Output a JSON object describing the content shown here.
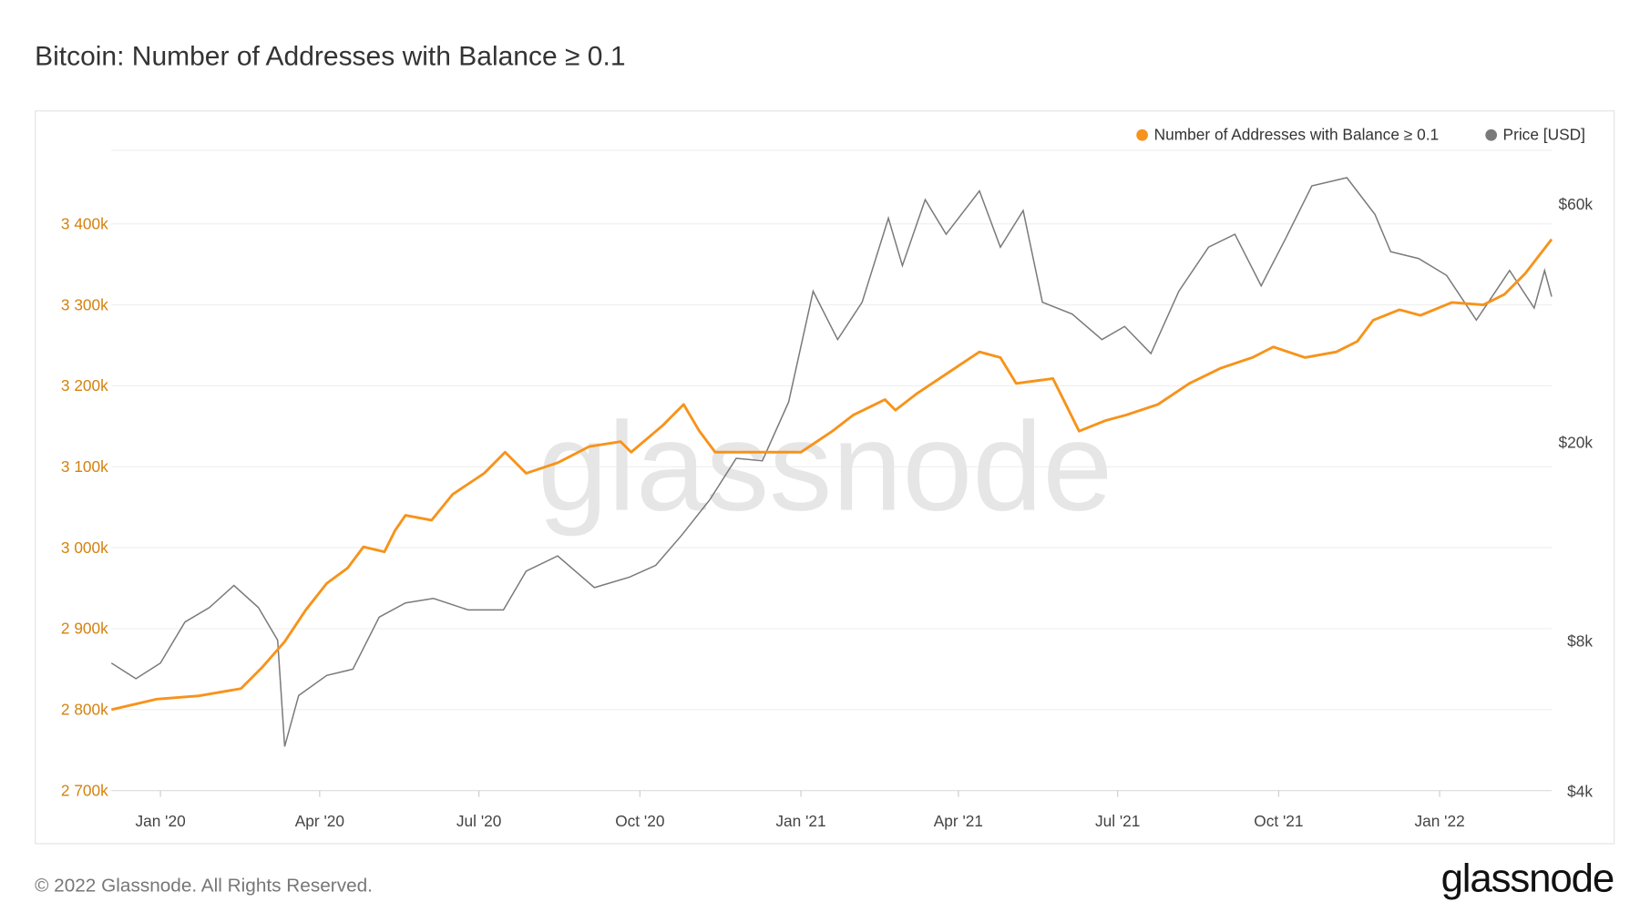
{
  "title": "Bitcoin: Number of Addresses with Balance ≥ 0.1",
  "footer": "© 2022 Glassnode. All Rights Reserved.",
  "logo": "glassnode",
  "watermark": "glassnode",
  "colors": {
    "addresses": "#f7931a",
    "price": "#7a7a7a",
    "left_axis": "#d4820f"
  },
  "chart_data": {
    "type": "line",
    "title": "Bitcoin: Number of Addresses with Balance ≥ 0.1",
    "legend_position": "top-right",
    "grid": true,
    "x_range": [
      "2019-12-04",
      "2022-03-06"
    ],
    "x_ticks": [
      {
        "date": "2020-01-01",
        "label": "Jan '20"
      },
      {
        "date": "2020-04-01",
        "label": "Apr '20"
      },
      {
        "date": "2020-07-01",
        "label": "Jul '20"
      },
      {
        "date": "2020-10-01",
        "label": "Oct '20"
      },
      {
        "date": "2021-01-01",
        "label": "Jan '21"
      },
      {
        "date": "2021-04-01",
        "label": "Apr '21"
      },
      {
        "date": "2021-07-01",
        "label": "Jul '21"
      },
      {
        "date": "2021-10-01",
        "label": "Oct '21"
      },
      {
        "date": "2022-01-01",
        "label": "Jan '22"
      }
    ],
    "y_left": {
      "scale": "linear",
      "range": [
        2700000,
        3490000
      ],
      "ticks": [
        {
          "value": 2700000,
          "label": "2 700k"
        },
        {
          "value": 2800000,
          "label": "2 800k"
        },
        {
          "value": 2900000,
          "label": "2 900k"
        },
        {
          "value": 3000000,
          "label": "3 000k"
        },
        {
          "value": 3100000,
          "label": "3 100k"
        },
        {
          "value": 3200000,
          "label": "3 200k"
        },
        {
          "value": 3300000,
          "label": "3 300k"
        },
        {
          "value": 3400000,
          "label": "3 400k"
        }
      ]
    },
    "y_right": {
      "scale": "log",
      "range": [
        4000,
        62000
      ],
      "ticks": [
        {
          "value": 4000,
          "label": "$4k"
        },
        {
          "value": 8000,
          "label": "$8k"
        },
        {
          "value": 20000,
          "label": "$20k"
        },
        {
          "value": 60000,
          "label": "$60k"
        }
      ]
    },
    "series": [
      {
        "name": "Number of Addresses with Balance ≥ 0.1",
        "axis": "left",
        "points": [
          [
            "2019-12-04",
            2800000
          ],
          [
            "2019-12-30",
            2813000
          ],
          [
            "2020-01-23",
            2817000
          ],
          [
            "2020-02-16",
            2826000
          ],
          [
            "2020-02-28",
            2852000
          ],
          [
            "2020-03-12",
            2884000
          ],
          [
            "2020-03-24",
            2923000
          ],
          [
            "2020-04-05",
            2956000
          ],
          [
            "2020-04-17",
            2975000
          ],
          [
            "2020-04-26",
            3001000
          ],
          [
            "2020-05-08",
            2995000
          ],
          [
            "2020-05-14",
            3021000
          ],
          [
            "2020-05-20",
            3040000
          ],
          [
            "2020-06-04",
            3034000
          ],
          [
            "2020-06-16",
            3066000
          ],
          [
            "2020-07-04",
            3092000
          ],
          [
            "2020-07-16",
            3118000
          ],
          [
            "2020-07-28",
            3092000
          ],
          [
            "2020-08-15",
            3105000
          ],
          [
            "2020-09-02",
            3125000
          ],
          [
            "2020-09-20",
            3131000
          ],
          [
            "2020-09-26",
            3118000
          ],
          [
            "2020-10-14",
            3151000
          ],
          [
            "2020-10-26",
            3177000
          ],
          [
            "2020-11-04",
            3144000
          ],
          [
            "2020-11-13",
            3118000
          ],
          [
            "2020-12-07",
            3118000
          ],
          [
            "2021-01-01",
            3118000
          ],
          [
            "2021-01-19",
            3144000
          ],
          [
            "2021-01-31",
            3164000
          ],
          [
            "2021-02-18",
            3183000
          ],
          [
            "2021-02-24",
            3170000
          ],
          [
            "2021-03-08",
            3190000
          ],
          [
            "2021-03-26",
            3216000
          ],
          [
            "2021-04-13",
            3242000
          ],
          [
            "2021-04-25",
            3235000
          ],
          [
            "2021-05-04",
            3203000
          ],
          [
            "2021-05-25",
            3209000
          ],
          [
            "2021-05-31",
            3183000
          ],
          [
            "2021-06-09",
            3144000
          ],
          [
            "2021-06-24",
            3157000
          ],
          [
            "2021-07-06",
            3164000
          ],
          [
            "2021-07-24",
            3177000
          ],
          [
            "2021-08-11",
            3203000
          ],
          [
            "2021-08-29",
            3222000
          ],
          [
            "2021-09-16",
            3235000
          ],
          [
            "2021-09-28",
            3248000
          ],
          [
            "2021-10-16",
            3235000
          ],
          [
            "2021-11-03",
            3242000
          ],
          [
            "2021-11-15",
            3255000
          ],
          [
            "2021-11-24",
            3281000
          ],
          [
            "2021-12-09",
            3294000
          ],
          [
            "2021-12-21",
            3287000
          ],
          [
            "2022-01-08",
            3303000
          ],
          [
            "2022-01-26",
            3300000
          ],
          [
            "2022-02-07",
            3313000
          ],
          [
            "2022-02-19",
            3339000
          ],
          [
            "2022-03-06",
            3381000
          ]
        ]
      },
      {
        "name": "Price [USD]",
        "axis": "right",
        "points": [
          [
            "2019-12-04",
            7200
          ],
          [
            "2019-12-18",
            6700
          ],
          [
            "2020-01-01",
            7200
          ],
          [
            "2020-01-15",
            8700
          ],
          [
            "2020-01-29",
            9300
          ],
          [
            "2020-02-12",
            10300
          ],
          [
            "2020-02-26",
            9300
          ],
          [
            "2020-03-08",
            8000
          ],
          [
            "2020-03-12",
            4900
          ],
          [
            "2020-03-20",
            6200
          ],
          [
            "2020-04-05",
            6800
          ],
          [
            "2020-04-20",
            7000
          ],
          [
            "2020-05-05",
            8900
          ],
          [
            "2020-05-20",
            9500
          ],
          [
            "2020-06-05",
            9700
          ],
          [
            "2020-06-25",
            9200
          ],
          [
            "2020-07-15",
            9200
          ],
          [
            "2020-07-28",
            11000
          ],
          [
            "2020-08-15",
            11800
          ],
          [
            "2020-09-05",
            10200
          ],
          [
            "2020-09-25",
            10700
          ],
          [
            "2020-10-10",
            11300
          ],
          [
            "2020-10-25",
            13000
          ],
          [
            "2020-11-10",
            15300
          ],
          [
            "2020-11-25",
            18500
          ],
          [
            "2020-12-10",
            18300
          ],
          [
            "2020-12-25",
            24000
          ],
          [
            "2021-01-08",
            40000
          ],
          [
            "2021-01-22",
            32000
          ],
          [
            "2021-02-05",
            38000
          ],
          [
            "2021-02-20",
            56000
          ],
          [
            "2021-02-28",
            45000
          ],
          [
            "2021-03-13",
            61000
          ],
          [
            "2021-03-25",
            52000
          ],
          [
            "2021-04-13",
            63500
          ],
          [
            "2021-04-25",
            49000
          ],
          [
            "2021-05-08",
            58000
          ],
          [
            "2021-05-19",
            38000
          ],
          [
            "2021-06-05",
            36000
          ],
          [
            "2021-06-22",
            32000
          ],
          [
            "2021-07-05",
            34000
          ],
          [
            "2021-07-20",
            30000
          ],
          [
            "2021-08-05",
            40000
          ],
          [
            "2021-08-22",
            49000
          ],
          [
            "2021-09-06",
            52000
          ],
          [
            "2021-09-21",
            41000
          ],
          [
            "2021-10-05",
            51000
          ],
          [
            "2021-10-20",
            65000
          ],
          [
            "2021-11-09",
            67500
          ],
          [
            "2021-11-25",
            57000
          ],
          [
            "2021-12-04",
            48000
          ],
          [
            "2021-12-20",
            46500
          ],
          [
            "2022-01-05",
            43000
          ],
          [
            "2022-01-22",
            35000
          ],
          [
            "2022-02-10",
            44000
          ],
          [
            "2022-02-24",
            37000
          ],
          [
            "2022-03-02",
            44000
          ],
          [
            "2022-03-06",
            39000
          ]
        ]
      }
    ]
  }
}
